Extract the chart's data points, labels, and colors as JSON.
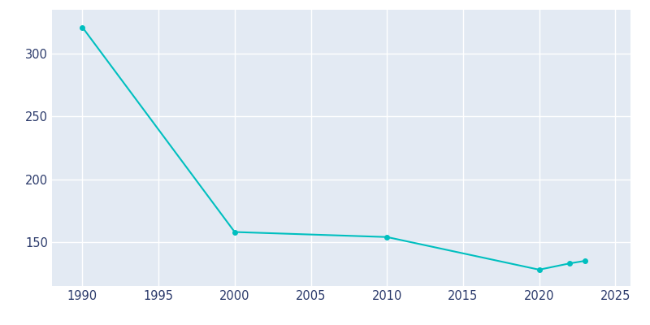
{
  "years": [
    1990,
    2000,
    2010,
    2020,
    2022,
    2023
  ],
  "population": [
    321,
    158,
    154,
    128,
    133,
    135
  ],
  "line_color": "#00BFBF",
  "marker_style": "o",
  "marker_size": 4,
  "line_width": 1.5,
  "background_color": "#E3EAF3",
  "fig_background_color": "#FFFFFF",
  "grid_color": "#FFFFFF",
  "xlim": [
    1988,
    2026
  ],
  "ylim": [
    115,
    335
  ],
  "xticks": [
    1990,
    1995,
    2000,
    2005,
    2010,
    2015,
    2020,
    2025
  ],
  "yticks": [
    150,
    200,
    250,
    300
  ],
  "tick_label_color": "#2B3A6B",
  "tick_fontsize": 10.5
}
